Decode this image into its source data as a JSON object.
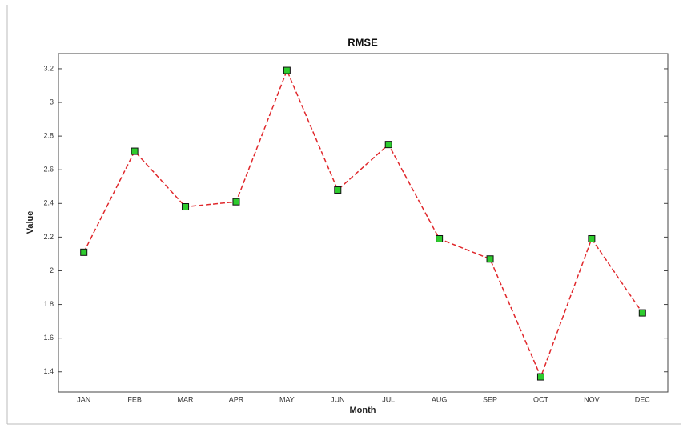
{
  "chart_data": {
    "type": "line",
    "title": "RMSE",
    "x_label": "Month",
    "y_label": "Value",
    "categories": [
      "JAN",
      "FEB",
      "MAR",
      "APR",
      "MAY",
      "JUN",
      "JUL",
      "AUG",
      "SEP",
      "OCT",
      "NOV",
      "DEC"
    ],
    "values": [
      2.11,
      2.71,
      2.38,
      2.41,
      3.19,
      2.48,
      2.75,
      2.19,
      2.07,
      1.37,
      2.19,
      1.75
    ],
    "color": "#e0282c",
    "line_style": "dashed",
    "marker": "square",
    "marker_color": "#2ecc2e",
    "ylim": [
      1.28,
      3.29
    ],
    "yticks": [
      1.4,
      1.6,
      1.8,
      2,
      2.2,
      2.4,
      2.6,
      2.8,
      3,
      3.2
    ],
    "grid": false
  }
}
